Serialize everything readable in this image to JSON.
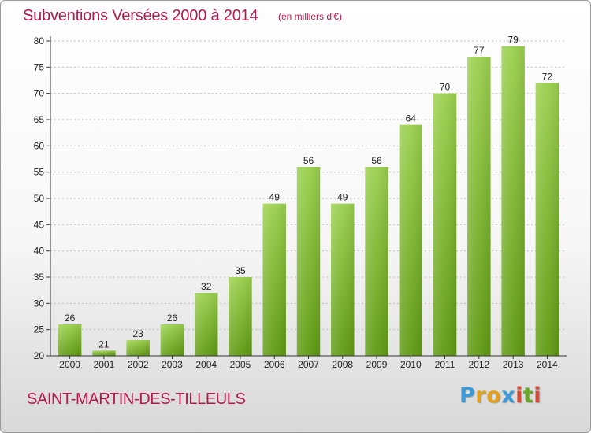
{
  "header": {
    "title": "Subventions Versées 2000 à 2014",
    "unit": "(en milliers d'€)"
  },
  "footer": {
    "commune": "SAINT-MARTIN-DES-TILLEULS",
    "logo_letters": [
      "P",
      "r",
      "o",
      "x",
      "i",
      "t",
      "i"
    ],
    "logo_colors": [
      "#3d9ad6",
      "#e0a020",
      "#e0a020",
      "#3d9ad6",
      "#d64a3a",
      "#6aa82a",
      "#d64a3a"
    ]
  },
  "colors": {
    "title": "#b5174a",
    "bar_light": "#9bd04e",
    "bar_dark": "#5f9a12",
    "axis": "#333333",
    "grid": "#bfbfbf"
  },
  "chart_data": {
    "type": "bar",
    "categories": [
      "2000",
      "2001",
      "2002",
      "2003",
      "2004",
      "2005",
      "2006",
      "2007",
      "2008",
      "2009",
      "2010",
      "2011",
      "2012",
      "2013",
      "2014"
    ],
    "values": [
      26,
      21,
      23,
      26,
      32,
      35,
      49,
      56,
      49,
      56,
      64,
      70,
      77,
      79,
      72
    ],
    "title": "Subventions Versées 2000 à 2014",
    "subtitle": "(en milliers d'€)",
    "ylim": [
      20,
      80
    ],
    "yticks": [
      20,
      25,
      30,
      35,
      40,
      45,
      50,
      55,
      60,
      65,
      70,
      75,
      80
    ],
    "grid": true,
    "data_labels": true
  }
}
